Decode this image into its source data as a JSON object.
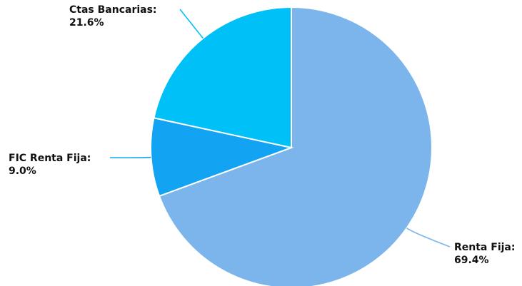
{
  "chart_data": {
    "type": "pie",
    "title": "",
    "legend": "none",
    "start_angle_deg": 0,
    "direction": "clockwise",
    "slices": [
      {
        "label": "Renta Fija:",
        "value_label": "69.4%",
        "value": 69.4,
        "color": "#7cb5ec"
      },
      {
        "label": "FIC Renta Fija:",
        "value_label": "9.0%",
        "value": 9.0,
        "color": "#12a4f3"
      },
      {
        "label": "Ctas Bancarias:",
        "value_label": "21.6%",
        "value": 21.6,
        "color": "#00c0f8"
      }
    ]
  }
}
